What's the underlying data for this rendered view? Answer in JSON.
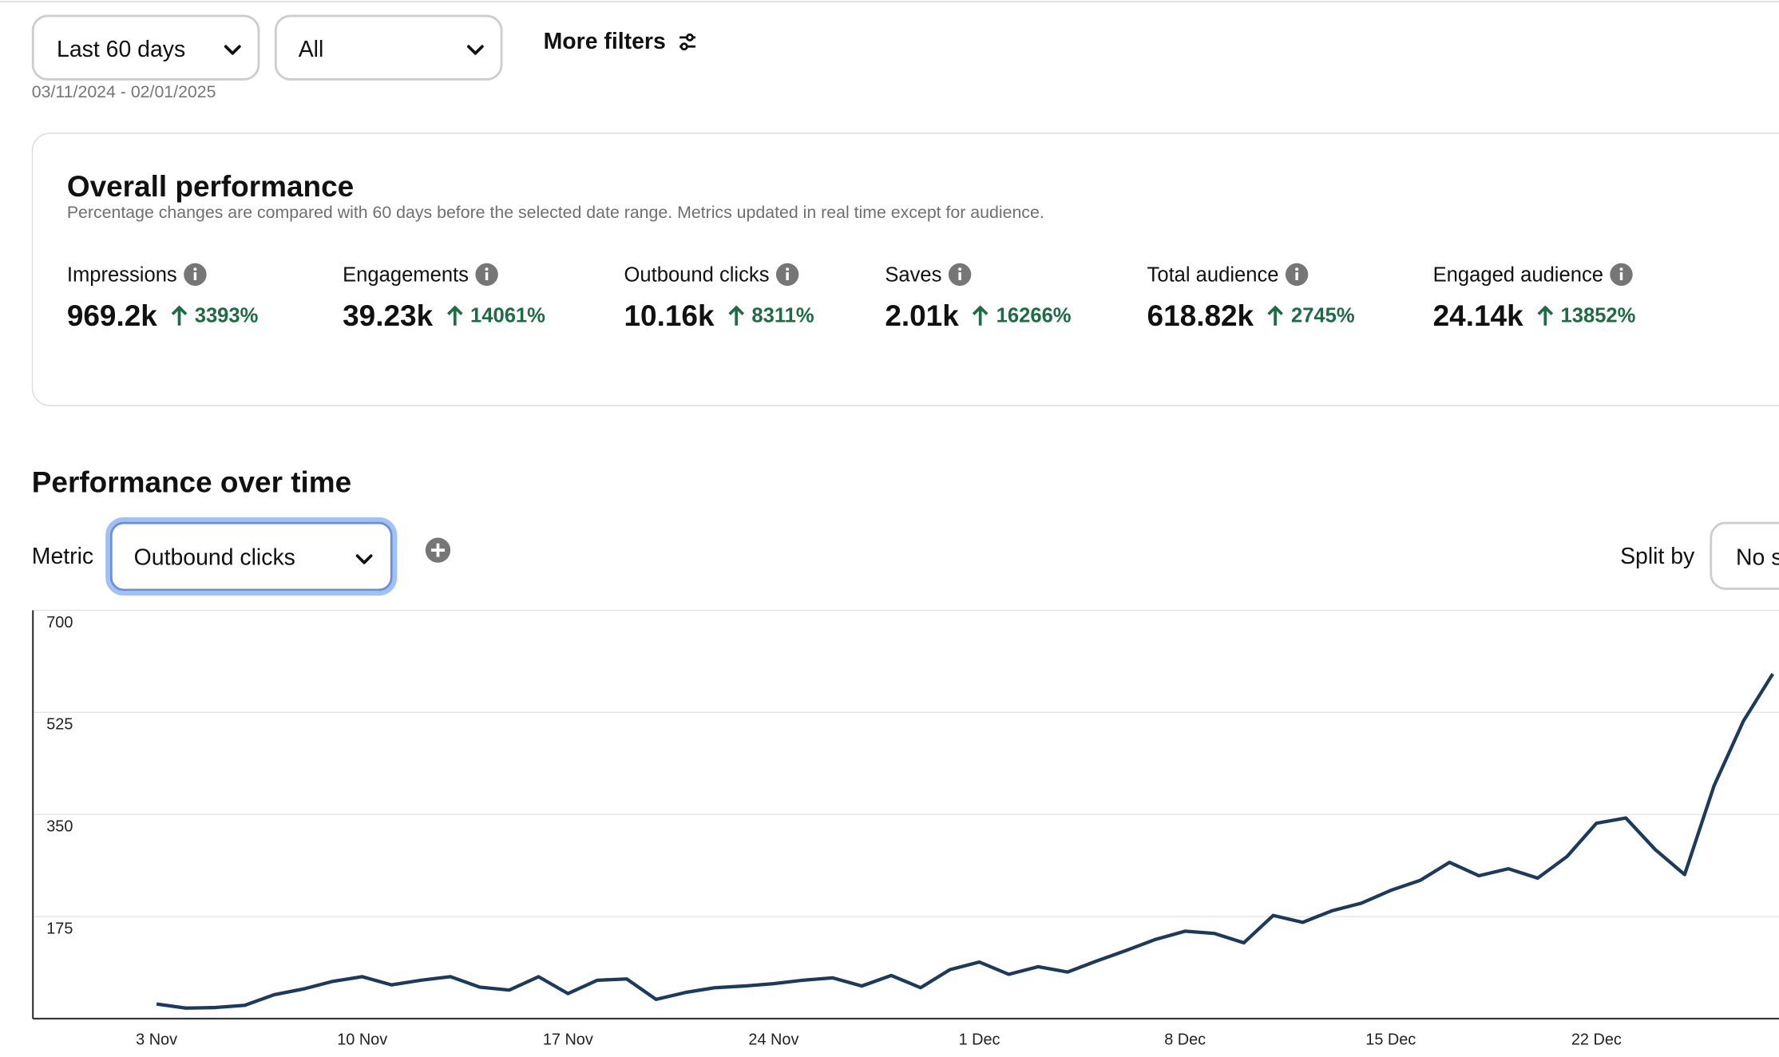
{
  "filters": {
    "date_range": "Last 60 days",
    "content": "All",
    "more": "More filters",
    "dates": "03/11/2024 - 02/01/2025"
  },
  "overall": {
    "title": "Overall performance",
    "subtitle": "Percentage changes are compared with 60 days before the selected date range. Metrics updated in real time except for audience.",
    "metrics": [
      {
        "name": "Impressions",
        "value": "969.2k",
        "change": "3393%"
      },
      {
        "name": "Engagements",
        "value": "39.23k",
        "change": "14061%"
      },
      {
        "name": "Outbound clicks",
        "value": "10.16k",
        "change": "8311%"
      },
      {
        "name": "Saves",
        "value": "2.01k",
        "change": "16266%"
      },
      {
        "name": "Total audience",
        "value": "618.82k",
        "change": "2745%"
      },
      {
        "name": "Engaged audience",
        "value": "24.14k",
        "change": "13852%"
      }
    ]
  },
  "over_time": {
    "title": "Performance over time",
    "metric_label": "Metric",
    "metric_select": "Outbound clicks",
    "split_label": "Split by",
    "split_select": "No split"
  },
  "chart_data": {
    "type": "line",
    "categories": [
      "3 Nov",
      null,
      null,
      null,
      null,
      null,
      null,
      "10 Nov",
      null,
      null,
      null,
      null,
      null,
      null,
      "17 Nov",
      null,
      null,
      null,
      null,
      null,
      null,
      "24 Nov",
      null,
      null,
      null,
      null,
      null,
      null,
      "1 Dec",
      null,
      null,
      null,
      null,
      null,
      null,
      "8 Dec",
      null,
      null,
      null,
      null,
      null,
      null,
      "15 Dec",
      null,
      null,
      null,
      null,
      null,
      null,
      "22 Dec",
      null,
      null,
      null,
      null,
      null,
      null
    ],
    "values": [
      25,
      18,
      19,
      23,
      41,
      51,
      64,
      72,
      58,
      66,
      72,
      54,
      49,
      72,
      43,
      66,
      68,
      33,
      45,
      53,
      56,
      60,
      66,
      70,
      56,
      74,
      53,
      84,
      97,
      76,
      89,
      80,
      99,
      117,
      136,
      150,
      146,
      130,
      177,
      165,
      185,
      198,
      220,
      237,
      268,
      245,
      257,
      241,
      278,
      335,
      344,
      290,
      247,
      399,
      510,
      591
    ],
    "color": "#1c3a5c",
    "ylim": [
      0,
      700
    ],
    "yticks": [
      175,
      350,
      525,
      700
    ],
    "grid": true
  }
}
